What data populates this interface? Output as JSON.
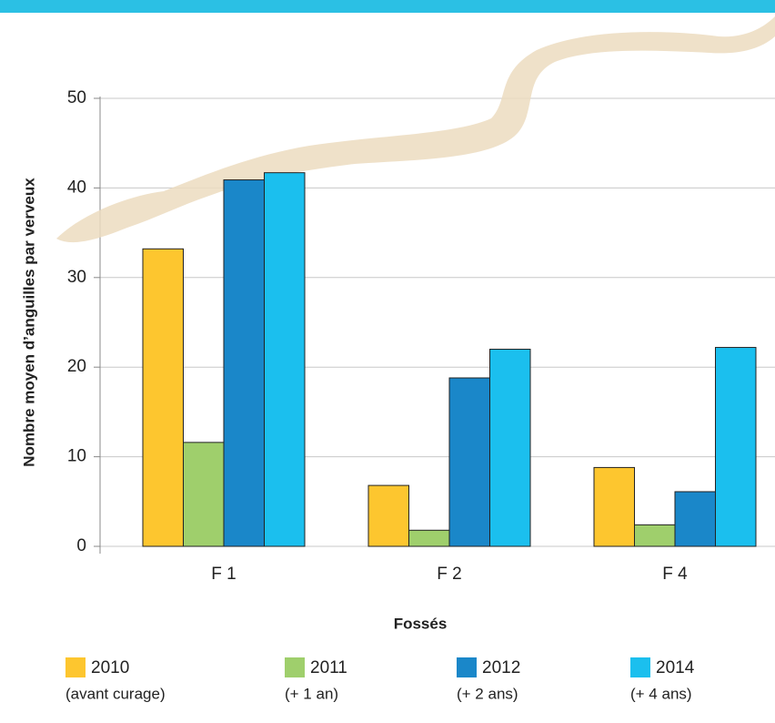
{
  "chart_data": {
    "type": "bar",
    "x_label": "Fossés",
    "y_label": "Nombre moyen d’anguilles par verveux",
    "categories": [
      "F 1",
      "F 2",
      "F 4"
    ],
    "series": [
      {
        "name": "2010",
        "sublabel": "(avant curage)",
        "color": "#fdc62f",
        "values": [
          33.2,
          6.8,
          8.8
        ]
      },
      {
        "name": "2011",
        "sublabel": "(+ 1 an)",
        "color": "#9fcf6c",
        "values": [
          11.6,
          1.8,
          2.4
        ]
      },
      {
        "name": "2012",
        "sublabel": "(+ 2 ans)",
        "color": "#1a87c9",
        "values": [
          40.9,
          18.8,
          6.1
        ]
      },
      {
        "name": "2014",
        "sublabel": "(+ 4 ans)",
        "color": "#1bbfee",
        "values": [
          41.7,
          22.0,
          22.2
        ]
      }
    ],
    "ylim": [
      0,
      50
    ],
    "yticks": [
      0,
      10,
      20,
      30,
      40,
      50
    ],
    "grid": true
  }
}
